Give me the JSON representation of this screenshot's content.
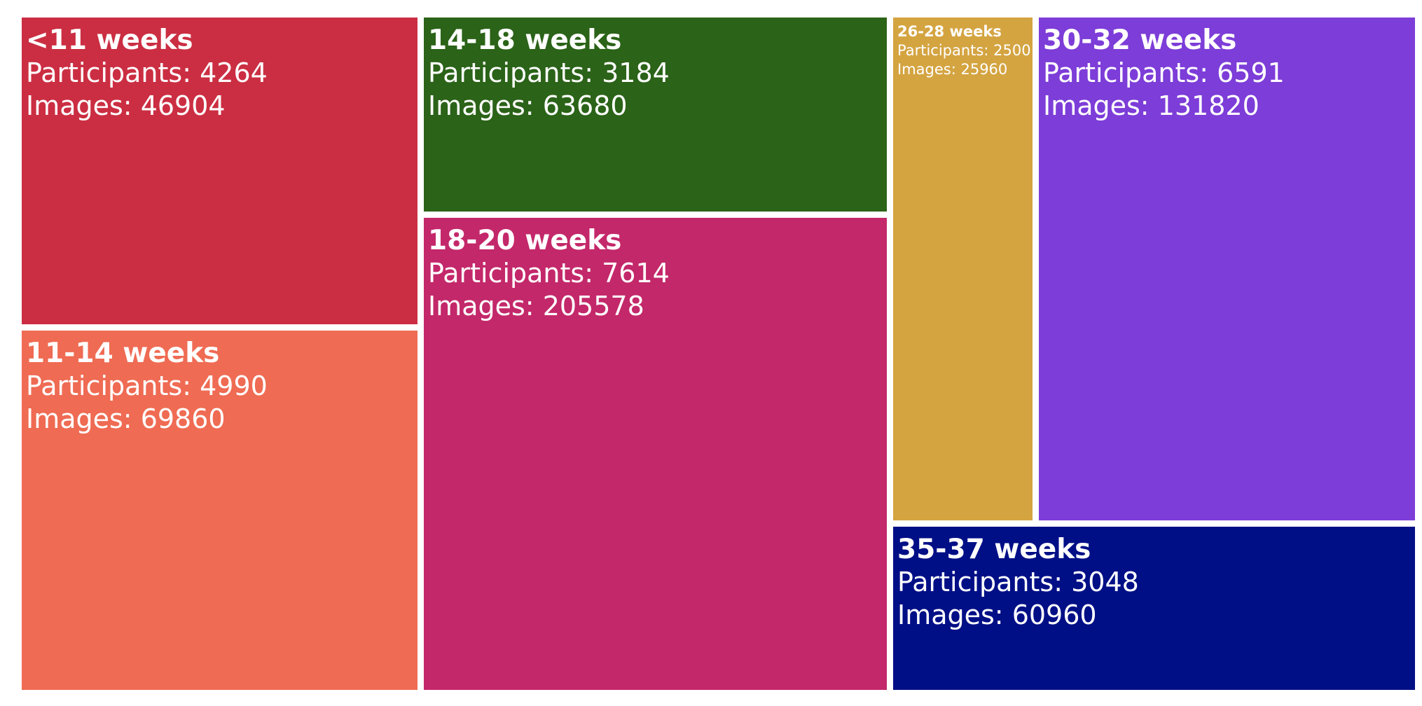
{
  "chart_data": {
    "type": "treemap",
    "participants_label": "Participants: ",
    "images_label": "Images: ",
    "items": [
      {
        "name": "<11 weeks",
        "participants": 4264,
        "images": 46904,
        "color": "#cb2e42"
      },
      {
        "name": "11-14 weeks",
        "participants": 4990,
        "images": 69860,
        "color": "#ef6b53"
      },
      {
        "name": "14-18 weeks",
        "participants": 3184,
        "images": 63680,
        "color": "#2b6318"
      },
      {
        "name": "18-20 weeks",
        "participants": 7614,
        "images": 205578,
        "color": "#c3286a"
      },
      {
        "name": "26-28 weeks",
        "participants": 2500,
        "images": 25960,
        "color": "#d4a441"
      },
      {
        "name": "30-32 weeks",
        "participants": 6591,
        "images": 131820,
        "color": "#7d3dd8"
      },
      {
        "name": "35-37 weeks",
        "participants": 3048,
        "images": 60960,
        "color": "#000f86"
      }
    ]
  }
}
